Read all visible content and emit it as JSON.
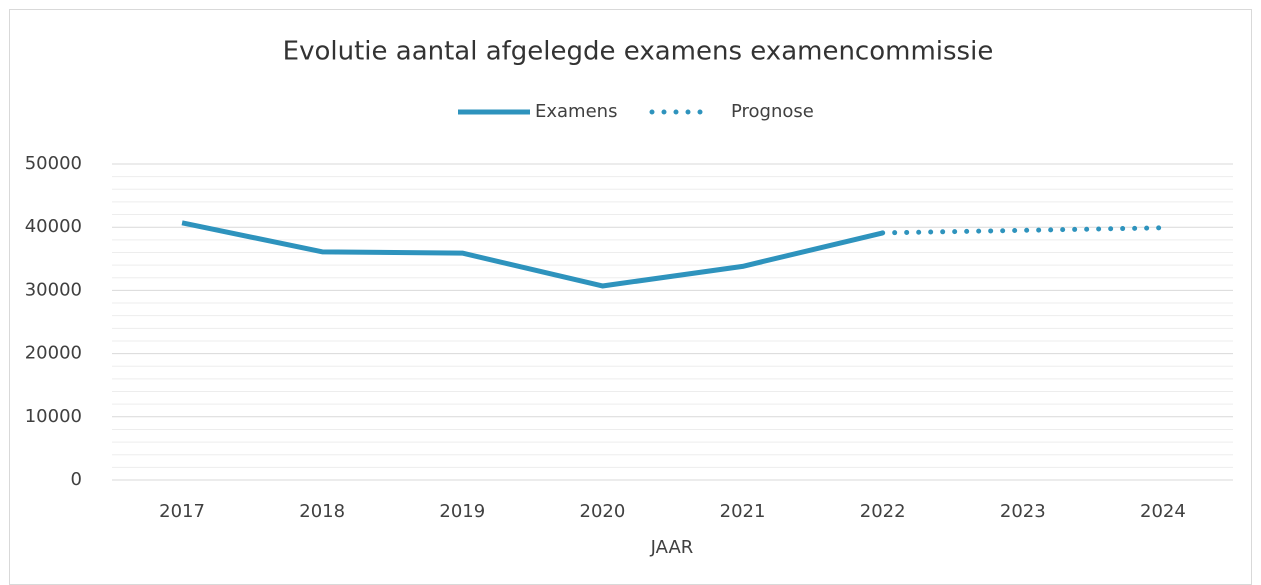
{
  "chart_data": {
    "type": "line",
    "title": "Evolutie aantal afgelegde examens examencommissie",
    "x_label": "JAAR",
    "categories": [
      "2017",
      "2018",
      "2019",
      "2020",
      "2021",
      "2022",
      "2023",
      "2024"
    ],
    "series": [
      {
        "name": "Examens",
        "color": "#2e93bd",
        "style": "solid",
        "values": [
          40700,
          36100,
          35900,
          30700,
          33800,
          39100,
          null,
          null
        ]
      },
      {
        "name": "Prognose",
        "color": "#2e93bd",
        "style": "dotted",
        "values": [
          null,
          null,
          null,
          null,
          null,
          39100,
          39500,
          39900
        ]
      }
    ],
    "ylim": [
      0,
      50000
    ],
    "yticks": [
      0,
      10000,
      20000,
      30000,
      40000,
      50000
    ],
    "grid": true,
    "minor_grid": true,
    "legend": "top"
  }
}
